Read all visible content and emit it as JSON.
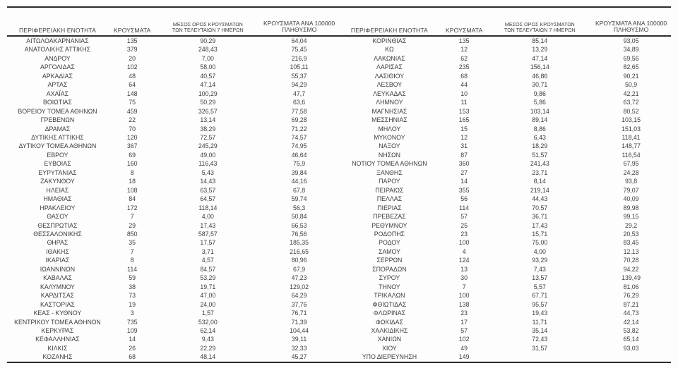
{
  "table": {
    "headers": {
      "region": "ΠΕΡΙΦΕΡΕΙΑΚΗ ΕΝΟΤΗΤΑ",
      "cases": "ΚΡΟΥΣΜΑΤΑ",
      "avg7_line1": "ΜΕΣΟΣ ΟΡΟΣ ΚΡΟΥΣΜΑΤΩΝ",
      "avg7_line2": "ΤΩΝ ΤΕΛΕΥΤΑΙΩΝ 7 ΗΜΕΡΩΝ",
      "per100k_line1": "ΚΡΟΥΣΜΑΤΑ ΑΝΑ 100000",
      "per100k_line2": "ΠΛΗΘΥΣΜΟ"
    },
    "left_rows": [
      [
        "ΑΙΤΩΛΟΑΚΑΡΝΑΝΙΑΣ",
        "135",
        "90,29",
        "64,04"
      ],
      [
        "ΑΝΑΤΟΛΙΚΗΣ ΑΤΤΙΚΗΣ",
        "379",
        "248,43",
        "75,45"
      ],
      [
        "ΑΝΔΡΟΥ",
        "20",
        "7,00",
        "216,9"
      ],
      [
        "ΑΡΓΟΛΙΔΑΣ",
        "102",
        "58,00",
        "105,11"
      ],
      [
        "ΑΡΚΑΔΙΑΣ",
        "48",
        "40,57",
        "55,37"
      ],
      [
        "ΑΡΤΑΣ",
        "64",
        "47,14",
        "94,29"
      ],
      [
        "ΑΧΑΪΑΣ",
        "148",
        "100,29",
        "47,7"
      ],
      [
        "ΒΟΙΩΤΙΑΣ",
        "75",
        "50,29",
        "63,6"
      ],
      [
        "ΒΟΡΕΙΟΥ ΤΟΜΕΑ ΑΘΗΝΩΝ",
        "459",
        "326,57",
        "77,58"
      ],
      [
        "ΓΡΕΒΕΝΩΝ",
        "22",
        "13,14",
        "69,28"
      ],
      [
        "ΔΡΑΜΑΣ",
        "70",
        "38,29",
        "71,22"
      ],
      [
        "ΔΥΤΙΚΗΣ ΑΤΤΙΚΗΣ",
        "120",
        "72,57",
        "74,57"
      ],
      [
        "ΔΥΤΙΚΟΥ ΤΟΜΕΑ ΑΘΗΝΩΝ",
        "367",
        "245,29",
        "74,95"
      ],
      [
        "ΕΒΡΟΥ",
        "69",
        "49,00",
        "46,64"
      ],
      [
        "ΕΥΒΟΙΑΣ",
        "160",
        "116,43",
        "75,9"
      ],
      [
        "ΕΥΡΥΤΑΝΙΑΣ",
        "8",
        "5,43",
        "39,84"
      ],
      [
        "ΖΑΚΥΝΘΟΥ",
        "18",
        "14,43",
        "44,16"
      ],
      [
        "ΗΛΕΙΑΣ",
        "108",
        "63,57",
        "67,8"
      ],
      [
        "ΗΜΑΘΙΑΣ",
        "84",
        "64,57",
        "59,74"
      ],
      [
        "ΗΡΑΚΛΕΙΟΥ",
        "172",
        "118,14",
        "56,3"
      ],
      [
        "ΘΑΣΟΥ",
        "7",
        "4,00",
        "50,84"
      ],
      [
        "ΘΕΣΠΡΩΤΙΑΣ",
        "29",
        "17,43",
        "66,53"
      ],
      [
        "ΘΕΣΣΑΛΟΝΙΚΗΣ",
        "850",
        "587,57",
        "76,56"
      ],
      [
        "ΘΗΡΑΣ",
        "35",
        "17,57",
        "185,35"
      ],
      [
        "ΙΘΑΚΗΣ",
        "7",
        "3,71",
        "216,65"
      ],
      [
        "ΙΚΑΡΙΑΣ",
        "8",
        "4,57",
        "80,96"
      ],
      [
        "ΙΩΑΝΝΙΝΩΝ",
        "114",
        "84,57",
        "67,9"
      ],
      [
        "ΚΑΒΑΛΑΣ",
        "59",
        "53,29",
        "47,23"
      ],
      [
        "ΚΑΛΥΜΝΟΥ",
        "38",
        "19,71",
        "129,02"
      ],
      [
        "ΚΑΡΔΙΤΣΑΣ",
        "73",
        "47,00",
        "64,29"
      ],
      [
        "ΚΑΣΤΟΡΙΑΣ",
        "19",
        "24,00",
        "37,76"
      ],
      [
        "ΚΕΑΣ - ΚΥΘΝΟΥ",
        "3",
        "1,57",
        "76,71"
      ],
      [
        "ΚΕΝΤΡΙΚΟΥ ΤΟΜΕΑ ΑΘΗΝΩΝ",
        "735",
        "532,00",
        "71,39"
      ],
      [
        "ΚΕΡΚΥΡΑΣ",
        "109",
        "62,14",
        "104,44"
      ],
      [
        "ΚΕΦΑΛΛΗΝΙΑΣ",
        "14",
        "9,43",
        "39,11"
      ],
      [
        "ΚΙΛΚΙΣ",
        "26",
        "22,29",
        "32,33"
      ],
      [
        "ΚΟΖΑΝΗΣ",
        "68",
        "48,14",
        "45,27"
      ]
    ],
    "right_rows": [
      [
        "ΚΟΡΙΝΘΙΑΣ",
        "135",
        "85,14",
        "93,05"
      ],
      [
        "ΚΩ",
        "12",
        "13,29",
        "34,89"
      ],
      [
        "ΛΑΚΩΝΙΑΣ",
        "62",
        "47,14",
        "69,56"
      ],
      [
        "ΛΑΡΙΣΑΣ",
        "235",
        "156,14",
        "82,65"
      ],
      [
        "ΛΑΣΙΘΙΟΥ",
        "68",
        "46,86",
        "90,21"
      ],
      [
        "ΛΕΣΒΟΥ",
        "44",
        "30,71",
        "50,9"
      ],
      [
        "ΛΕΥΚΑΔΑΣ",
        "10",
        "9,86",
        "42,21"
      ],
      [
        "ΛΗΜΝΟΥ",
        "11",
        "5,86",
        "63,72"
      ],
      [
        "ΜΑΓΝΗΣΙΑΣ",
        "153",
        "103,14",
        "80,52"
      ],
      [
        "ΜΕΣΣΗΝΙΑΣ",
        "165",
        "89,14",
        "103,15"
      ],
      [
        "ΜΗΛΟΥ",
        "15",
        "8,86",
        "151,03"
      ],
      [
        "ΜΥΚΟΝΟΥ",
        "12",
        "6,43",
        "118,41"
      ],
      [
        "ΝΑΞΟΥ",
        "31",
        "18,29",
        "148,77"
      ],
      [
        "ΝΗΣΩΝ",
        "87",
        "51,57",
        "116,54"
      ],
      [
        "ΝΟΤΙΟΥ ΤΟΜΕΑ ΑΘΗΝΩΝ",
        "360",
        "241,43",
        "67,95"
      ],
      [
        "ΞΑΝΘΗΣ",
        "27",
        "23,71",
        "24,28"
      ],
      [
        "ΠΑΡΟΥ",
        "14",
        "8,14",
        "93,8"
      ],
      [
        "ΠΕΙΡΑΙΩΣ",
        "355",
        "219,14",
        "79,07"
      ],
      [
        "ΠΕΛΛΑΣ",
        "56",
        "44,43",
        "40,09"
      ],
      [
        "ΠΙΕΡΙΑΣ",
        "114",
        "70,57",
        "89,98"
      ],
      [
        "ΠΡΕΒΕΖΑΣ",
        "57",
        "36,71",
        "99,15"
      ],
      [
        "ΡΕΘΥΜΝΟΥ",
        "25",
        "17,43",
        "29,2"
      ],
      [
        "ΡΟΔΟΠΗΣ",
        "23",
        "15,71",
        "20,53"
      ],
      [
        "ΡΟΔΟΥ",
        "100",
        "75,00",
        "83,45"
      ],
      [
        "ΣΑΜΟΥ",
        "4",
        "4,00",
        "12,13"
      ],
      [
        "ΣΕΡΡΩΝ",
        "124",
        "93,29",
        "70,28"
      ],
      [
        "ΣΠΟΡΑΔΩΝ",
        "13",
        "7,43",
        "94,22"
      ],
      [
        "ΣΥΡΟΥ",
        "30",
        "13,57",
        "139,49"
      ],
      [
        "ΤΗΝΟΥ",
        "7",
        "5,57",
        "81,06"
      ],
      [
        "ΤΡΙΚΑΛΩΝ",
        "100",
        "67,71",
        "76,29"
      ],
      [
        "ΦΘΙΩΤΙΔΑΣ",
        "138",
        "95,57",
        "87,21"
      ],
      [
        "ΦΛΩΡΙΝΑΣ",
        "23",
        "19,43",
        "44,73"
      ],
      [
        "ΦΩΚΙΔΑΣ",
        "17",
        "11,71",
        "42,14"
      ],
      [
        "ΧΑΛΚΙΔΙΚΗΣ",
        "57",
        "35,14",
        "53,82"
      ],
      [
        "ΧΑΝΙΩΝ",
        "102",
        "72,43",
        "65,14"
      ],
      [
        "ΧΙΟΥ",
        "49",
        "31,57",
        "93,03"
      ],
      [
        "ΥΠΟ ΔΙΕΡΕΥΝΗΣΗ",
        "149",
        "",
        ""
      ]
    ]
  }
}
